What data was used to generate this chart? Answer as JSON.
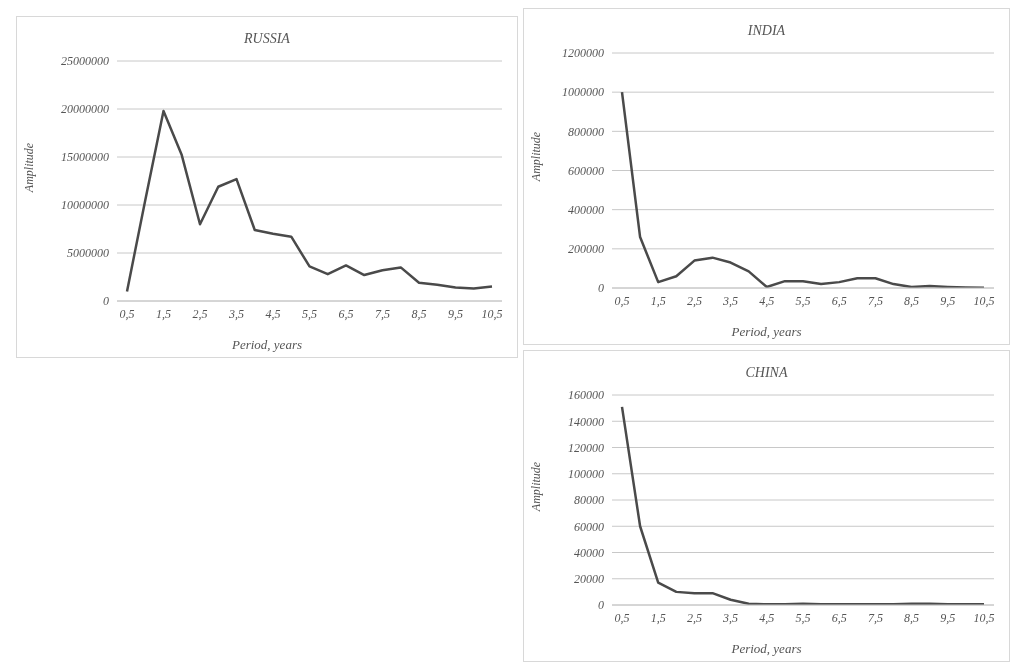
{
  "chart_data": [
    {
      "type": "line",
      "title": "RUSSIA",
      "xlabel": "Period, years",
      "ylabel": "Amplitude",
      "categories": [
        "0,5",
        null,
        "1,5",
        null,
        "2,5",
        null,
        "3,5",
        null,
        "4,5",
        null,
        "5,5",
        null,
        "6,5",
        null,
        "7,5",
        null,
        "8,5",
        null,
        "9,5",
        null,
        "10,5"
      ],
      "series": [
        {
          "color": "#4a4a4a",
          "values": [
            1000000,
            10500000,
            19800000,
            15200000,
            8000000,
            11900000,
            12700000,
            7400000,
            7000000,
            6700000,
            3600000,
            2800000,
            3700000,
            2700000,
            3200000,
            3500000,
            1900000,
            1700000,
            1400000,
            1300000,
            1500000
          ]
        }
      ],
      "ylim": [
        0,
        25000000
      ],
      "yticks": [
        0,
        5000000,
        10000000,
        15000000,
        20000000,
        25000000
      ],
      "grid": "y",
      "marker": "none",
      "line_style": "solid",
      "legend": false
    },
    {
      "type": "line",
      "title": "INDIA",
      "xlabel": "Period, years",
      "ylabel": "Amplitude",
      "categories": [
        "0,5",
        null,
        "1,5",
        null,
        "2,5",
        null,
        "3,5",
        null,
        "4,5",
        null,
        "5,5",
        null,
        "6,5",
        null,
        "7,5",
        null,
        "8,5",
        null,
        "9,5",
        null,
        "10,5"
      ],
      "series": [
        {
          "color": "#4a4a4a",
          "values": [
            1000000,
            260000,
            30000,
            60000,
            140000,
            155000,
            130000,
            85000,
            5000,
            35000,
            35000,
            20000,
            30000,
            50000,
            50000,
            20000,
            5000,
            10000,
            5000,
            2000,
            1000
          ]
        }
      ],
      "ylim": [
        0,
        1200000
      ],
      "yticks": [
        0,
        200000,
        400000,
        600000,
        800000,
        1000000,
        1200000
      ],
      "grid": "y",
      "marker": "none",
      "line_style": "solid",
      "legend": false
    },
    {
      "type": "line",
      "title": "CHINA",
      "xlabel": "Period, years",
      "ylabel": "Amplitude",
      "categories": [
        "0,5",
        null,
        "1,5",
        null,
        "2,5",
        null,
        "3,5",
        null,
        "4,5",
        null,
        "5,5",
        null,
        "6,5",
        null,
        "7,5",
        null,
        "8,5",
        null,
        "9,5",
        null,
        "10,5"
      ],
      "series": [
        {
          "color": "#4a4a4a",
          "values": [
            151000,
            60000,
            17000,
            10000,
            9000,
            9000,
            4000,
            1000,
            500,
            500,
            1000,
            500,
            500,
            500,
            500,
            500,
            1000,
            1000,
            500,
            500,
            500
          ]
        }
      ],
      "ylim": [
        0,
        160000
      ],
      "yticks": [
        0,
        20000,
        40000,
        60000,
        80000,
        100000,
        120000,
        140000,
        160000
      ],
      "grid": "y",
      "marker": "none",
      "line_style": "solid",
      "legend": false
    }
  ]
}
